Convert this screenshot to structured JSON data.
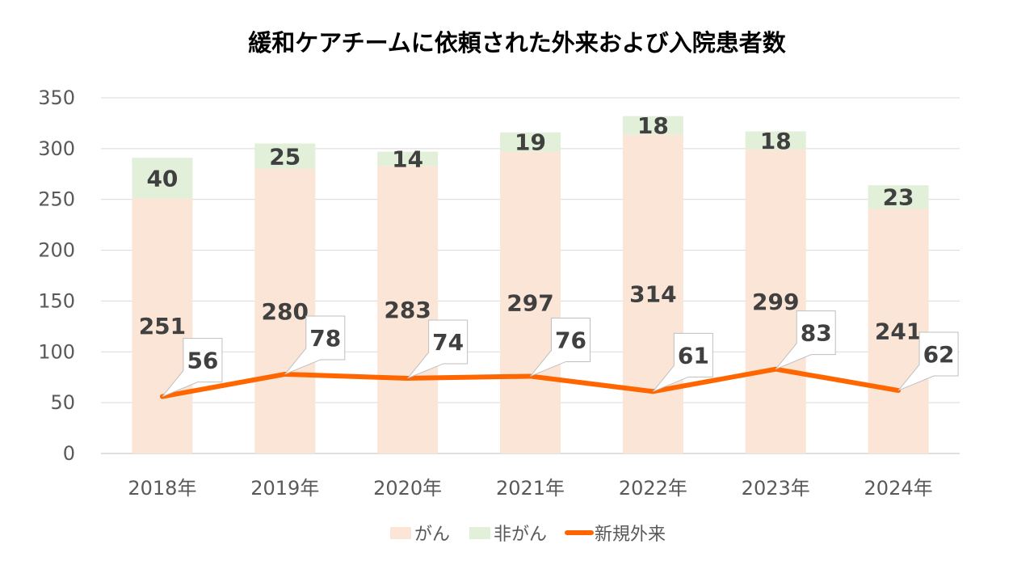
{
  "chart_data": {
    "type": "bar",
    "stacked": true,
    "title": "緩和ケアチームに依頼された外来および入院患者数",
    "categories": [
      "2018年",
      "2019年",
      "2020年",
      "2021年",
      "2022年",
      "2023年",
      "2024年"
    ],
    "series": [
      {
        "name": "がん",
        "type": "bar",
        "color": "#FBE5D6",
        "values": [
          251,
          280,
          283,
          297,
          314,
          299,
          241
        ]
      },
      {
        "name": "非がん",
        "type": "bar",
        "color": "#E2F0D9",
        "values": [
          40,
          25,
          14,
          19,
          18,
          18,
          23
        ]
      },
      {
        "name": "新規外来",
        "type": "line",
        "color": "#FF6600",
        "values": [
          56,
          78,
          74,
          76,
          61,
          83,
          62
        ]
      }
    ],
    "ylim": [
      0,
      350
    ],
    "yticks": [
      0,
      50,
      100,
      150,
      200,
      250,
      300,
      350
    ],
    "grid": true,
    "legend": "bottom",
    "xlabel": "",
    "ylabel": ""
  }
}
